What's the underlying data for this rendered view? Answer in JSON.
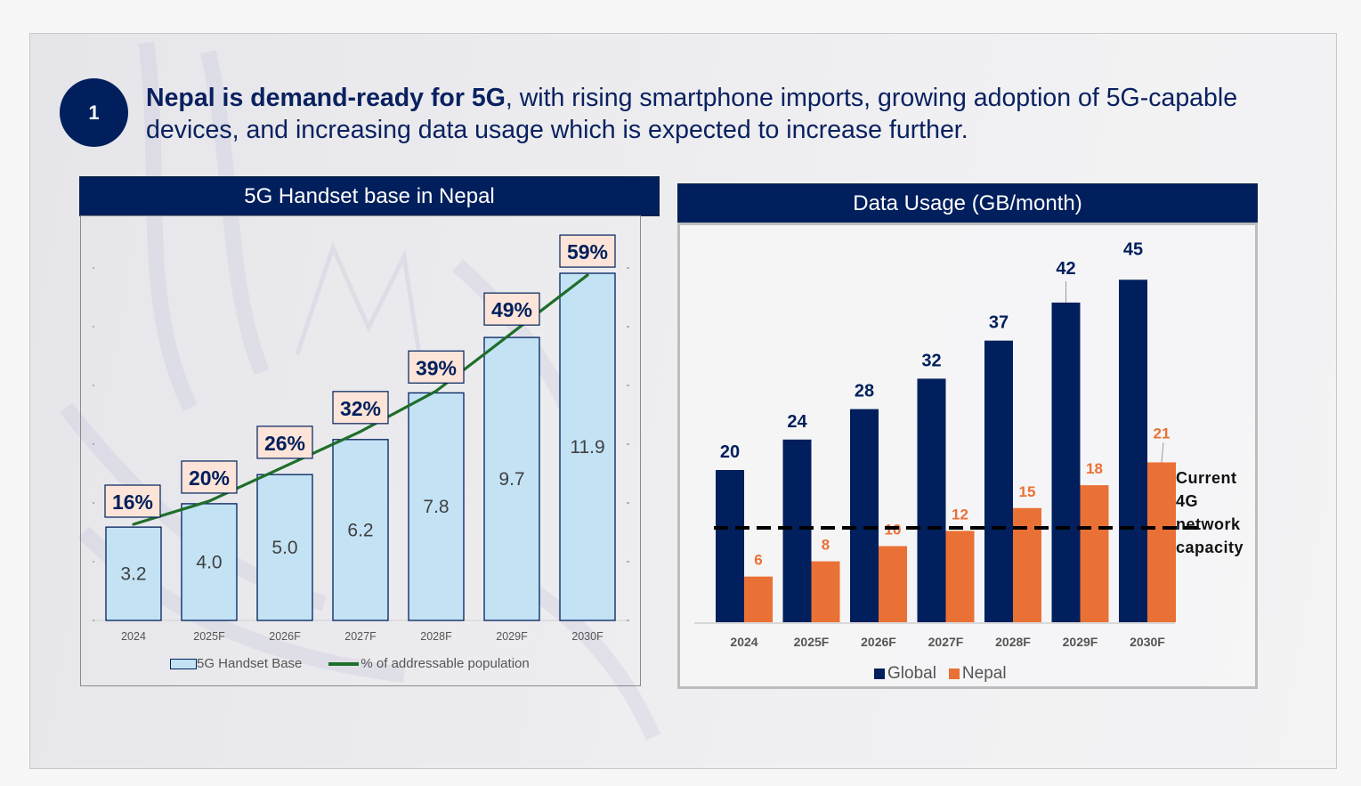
{
  "slide": {
    "badge_number": "1",
    "headline_bold": "Nepal is demand-ready for 5G",
    "headline_rest": ", with rising smartphone imports, growing adoption of 5G-capable devices, and increasing data usage which is expected to increase further."
  },
  "colors": {
    "navy": "#001f5c",
    "light_blue_bar": "#c3e3f5",
    "green_line": "#1f6e2a",
    "label_box": "#fce4d8",
    "orange": "#ea7135"
  },
  "chart_data": [
    {
      "type": "bar",
      "title": "5G Handset base in Nepal",
      "categories": [
        "2024",
        "2025F",
        "2026F",
        "2027F",
        "2028F",
        "2029F",
        "2030F"
      ],
      "series": [
        {
          "name": "5G Handset Base",
          "kind": "bar",
          "values": [
            3.2,
            4.0,
            5.0,
            6.2,
            7.8,
            9.7,
            11.9
          ],
          "labels": [
            "3.2",
            "4.0",
            "5.0",
            "6.2",
            "7.8",
            "9.7",
            "11.9"
          ]
        },
        {
          "name": "% of addressable population",
          "kind": "line",
          "values": [
            16,
            20,
            26,
            32,
            39,
            49,
            59
          ],
          "labels": [
            "16%",
            "20%",
            "26%",
            "32%",
            "39%",
            "49%",
            "59%"
          ]
        }
      ],
      "xlabel": "",
      "ylabel": "",
      "ylim": [
        0,
        12
      ],
      "secondary_ylim": [
        0,
        60
      ],
      "grid": false,
      "legend": "bottom"
    },
    {
      "type": "bar",
      "title": "Data Usage (GB/month)",
      "categories": [
        "2024",
        "2025F",
        "2026F",
        "2027F",
        "2028F",
        "2029F",
        "2030F"
      ],
      "series": [
        {
          "name": "Global",
          "values": [
            20,
            24,
            28,
            32,
            37,
            42,
            45
          ]
        },
        {
          "name": "Nepal",
          "values": [
            6,
            8,
            10,
            12,
            15,
            18,
            21
          ]
        }
      ],
      "reference_line": {
        "value": 12.4,
        "label": "Current 4G network capacity",
        "label_lines": [
          "Current",
          "4G",
          "network",
          "capacity"
        ],
        "style": "dashed"
      },
      "xlabel": "",
      "ylabel": "",
      "ylim": [
        0,
        48
      ],
      "grid": false,
      "legend": "bottom"
    }
  ]
}
